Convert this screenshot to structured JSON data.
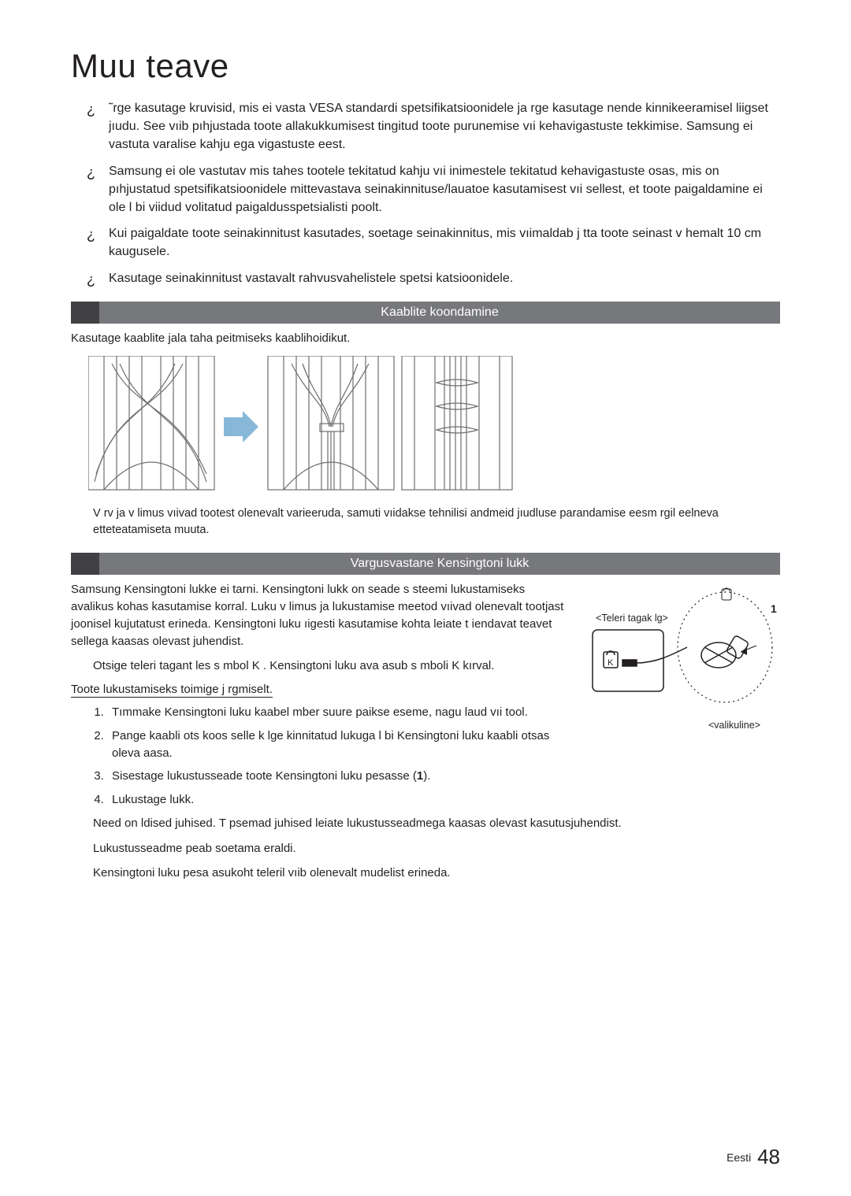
{
  "title": "Muu teave",
  "bullets": [
    "˜rge kasutage kruvisid, mis ei vasta VESA standardi spetsifikatsioonidele ja  rge kasutage nende kinnikeeramisel liigset jıudu. See vıib pıhjustada toote allakukkumisest tingitud toote purunemise vıi kehavigastuste tekkimise. Samsung ei vastuta varalise kahju ega vigastuste eest.",
    "Samsung ei ole vastutav mis tahes tootele tekitatud kahju vıi inimestele tekitatud kehavigastuste osas, mis on pıhjustatud spetsifikatsioonidele mittevastava seinakinnituse/lauatoe kasutamisest vıi sellest, et toote paigaldamine ei ole l bi viidud volitatud paigaldusspetsialisti poolt.",
    "Kui paigaldate toote seinakinnitust kasutades, soetage seinakinnitus, mis vıimaldab j tta toote seinast v hemalt 10 cm kaugusele.",
    "Kasutage seinakinnitust vastavalt rahvusvahelistele spetsi katsioonidele."
  ],
  "sections": {
    "cables": {
      "bar": "Kaablite koondamine",
      "intro": "Kasutage kaablite jala taha peitmiseks kaablihoidikut.",
      "note": "V rv ja v limus vıivad tootest olenevalt varieeruda, samuti vıidakse tehnilisi andmeid jıudluse parandamise eesm rgil eelneva etteteatamiseta muuta."
    },
    "kensington": {
      "bar": "Vargusvastane Kensingtoni lukk",
      "intro": "Samsung Kensingtoni lukke ei tarni. Kensingtoni lukk on seade s steemi lukustamiseks avalikus kohas kasutamise korral. Luku v limus ja lukustamise meetod vıivad olenevalt tootjast joonisel kujutatust erineda. Kensingtoni luku ıigesti kasutamise kohta leiate t iendavat teavet sellega kaasas olevast juhendist.",
      "find": "Otsige teleri tagant  les s mbol  K . Kensingtoni luku ava asub s mboli  K  kırval.",
      "steps_heading": "Toote lukustamiseks toimige j rgmiselt.",
      "steps": [
        "Tımmake Kensingtoni luku kaabel  mber suure paikse eseme, nagu laud vıi tool.",
        "Pange kaabli ots koos selle k lge kinnitatud lukuga l bi Kensingtoni luku kaabli otsas oleva aasa.",
        "Sisestage lukustusseade toote Kensingtoni luku pesasse (1).",
        "Lukustage lukk."
      ],
      "tail": [
        "Need on  ldised juhised. T psemad juhised leiate lukustusseadmega kaasas olevast kasutusjuhendist.",
        "Lukustusseadme peab soetama eraldi.",
        "Kensingtoni luku pesa asukoht teleril vıib olenevalt mudelist erineda."
      ],
      "fig_top": "<Teleri tagak lg>",
      "fig_bottom": "<valikuline>"
    }
  },
  "footer": {
    "lang": "Eesti",
    "page": "48"
  },
  "colors": {
    "bar_bg": "#77787b",
    "bar_accent": "#414042",
    "stroke": "#6d6e71",
    "arrow": "#88b8d8"
  }
}
